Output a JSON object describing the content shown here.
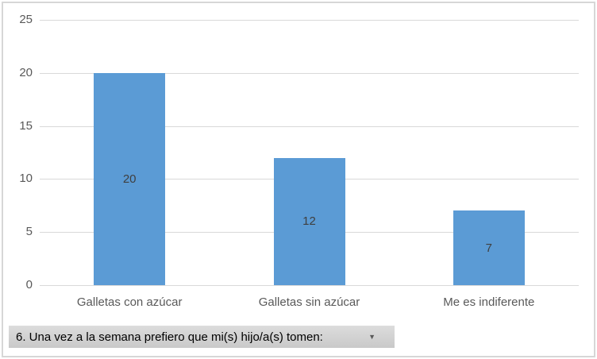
{
  "chart_data": {
    "type": "bar",
    "categories": [
      "Galletas con azúcar",
      "Galletas sin azúcar",
      "Me es indiferente"
    ],
    "values": [
      20,
      12,
      7
    ],
    "data_labels": [
      "20",
      "12",
      "7"
    ],
    "title": "",
    "xlabel": "",
    "ylabel": "",
    "ylim": [
      0,
      25
    ],
    "yticks": [
      0,
      5,
      10,
      15,
      20,
      25
    ],
    "grid": true,
    "legend": false,
    "bar_color": "#5b9bd5"
  },
  "filter_button": {
    "label": "6. Una vez a la semana prefiero que mi(s) hijo/a(s) tomen:",
    "icon": "dropdown-arrow-icon",
    "arrow_glyph": "▼"
  },
  "colors": {
    "bar": "#5b9bd5",
    "gridline": "#d9d9d9",
    "axis_label": "#595959",
    "data_label": "#3f3f3f",
    "frame_border": "#d7d7d7",
    "button_background": "#d2d2d2",
    "button_text": "#000000"
  }
}
